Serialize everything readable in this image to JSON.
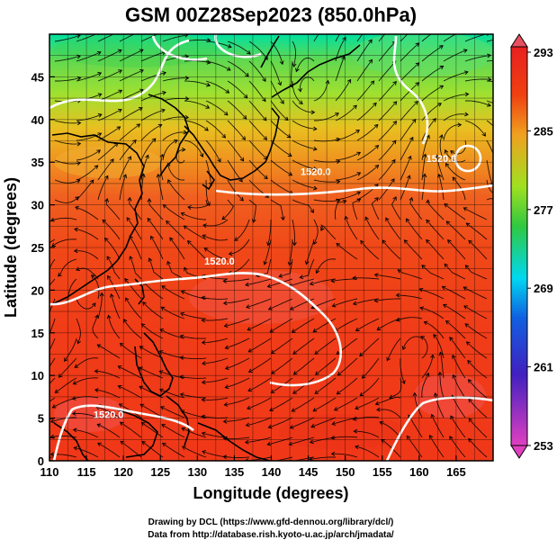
{
  "title": "GSM 00Z28Sep2023 (850.0hPa)",
  "x_axis": {
    "label": "Longitude (degrees)",
    "range": [
      110,
      170
    ],
    "ticks": [
      "110",
      "115",
      "120",
      "125",
      "130",
      "135",
      "140",
      "145",
      "150",
      "155",
      "160",
      "165"
    ],
    "tick_values": [
      110,
      115,
      120,
      125,
      130,
      135,
      140,
      145,
      150,
      155,
      160,
      165
    ]
  },
  "y_axis": {
    "label": "Latitude  (degrees)",
    "range": [
      0,
      50
    ],
    "ticks": [
      "0",
      "5",
      "10",
      "15",
      "20",
      "25",
      "30",
      "35",
      "40",
      "45"
    ],
    "tick_values": [
      0,
      5,
      10,
      15,
      20,
      25,
      30,
      35,
      40,
      45
    ]
  },
  "colorbar": {
    "min": 253,
    "max": 293,
    "labels": [
      "293",
      "285",
      "277",
      "269",
      "261",
      "253"
    ],
    "label_values": [
      293,
      285,
      277,
      269,
      261,
      253
    ],
    "colors": [
      "#e040c0",
      "#4020c0",
      "#1060e0",
      "#00d8f0",
      "#30c840",
      "#a0e020",
      "#f0a020",
      "#f04010",
      "#e82020"
    ]
  },
  "contours": {
    "color": "#ffffff",
    "labels": [
      {
        "text": "1520.0",
        "lon": 146,
        "lat": 33.5
      },
      {
        "text": "1520.0",
        "lon": 133,
        "lat": 23
      },
      {
        "text": "1520.0",
        "lon": 118,
        "lat": 5
      },
      {
        "text": "1520.0",
        "lon": 163,
        "lat": 35
      }
    ]
  },
  "credits": {
    "line1": "Drawing by DCL (https://www.gfd-dennou.org/library/dcl/)",
    "line2": "Data from http://database.rish.kyoto-u.ac.jp/arch/jmadata/"
  },
  "chart_data": {
    "type": "heatmap",
    "title": "GSM 00Z28Sep2023 (850.0hPa)",
    "xlabel": "Longitude (degrees)",
    "ylabel": "Latitude  (degrees)",
    "xlim": [
      110,
      170
    ],
    "ylim": [
      0,
      50
    ],
    "color_scale": [
      253,
      293
    ],
    "temperature_by_latitude": [
      {
        "lat": 48,
        "value": 276
      },
      {
        "lat": 45,
        "value": 279
      },
      {
        "lat": 40,
        "value": 284
      },
      {
        "lat": 35,
        "value": 287
      },
      {
        "lat": 30,
        "value": 289
      },
      {
        "lat": 20,
        "value": 291
      },
      {
        "lat": 10,
        "value": 291
      },
      {
        "lat": 0,
        "value": 292
      }
    ],
    "grid": true
  }
}
